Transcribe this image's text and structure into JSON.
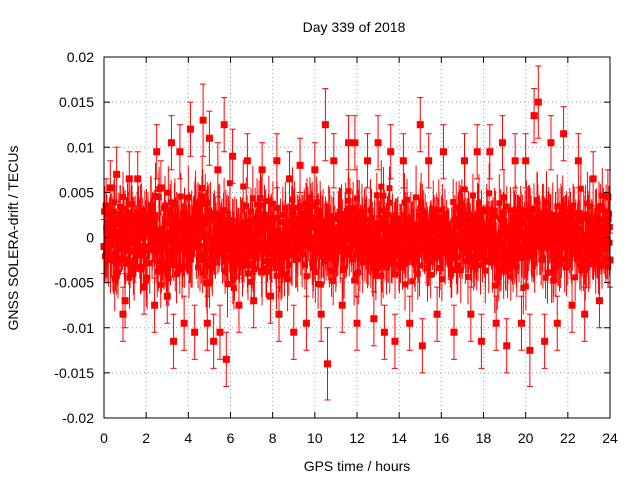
{
  "chart_data": {
    "type": "scatter",
    "title": "Day 339 of 2018",
    "xlabel": "GPS time / hours",
    "ylabel": "GNSS SOLERA-drift / TECUs",
    "xlim": [
      0,
      24
    ],
    "ylim": [
      -0.02,
      0.02
    ],
    "xticks": [
      "0",
      "2",
      "4",
      "6",
      "8",
      "10",
      "12",
      "14",
      "16",
      "18",
      "20",
      "22",
      "24"
    ],
    "yticks": [
      "0.02",
      "0.015",
      "0.01",
      "0.005",
      "0",
      "-0.005",
      "-0.01",
      "-0.015",
      "-0.02"
    ],
    "grid": true,
    "error_bars": true,
    "series": [
      {
        "color": "#ff0000",
        "marker": "square",
        "points": [
          [
            0.0,
            -0.001,
            0.003
          ],
          [
            0.1,
            0.0035,
            0.003
          ],
          [
            0.3,
            0.0055,
            0.003
          ],
          [
            0.6,
            0.007,
            0.003
          ],
          [
            0.9,
            -0.0085,
            0.003
          ],
          [
            1.0,
            -0.007,
            0.003
          ],
          [
            1.2,
            0.0065,
            0.003
          ],
          [
            1.6,
            0.0065,
            0.003
          ],
          [
            1.9,
            -0.0055,
            0.003
          ],
          [
            2.4,
            -0.0075,
            0.003
          ],
          [
            2.5,
            0.0095,
            0.003
          ],
          [
            2.7,
            0.0055,
            0.003
          ],
          [
            3.0,
            -0.0065,
            0.003
          ],
          [
            3.2,
            0.0105,
            0.003
          ],
          [
            3.3,
            -0.0115,
            0.003
          ],
          [
            3.6,
            0.0095,
            0.003
          ],
          [
            3.8,
            -0.0095,
            0.003
          ],
          [
            4.1,
            0.012,
            0.003
          ],
          [
            4.3,
            -0.0105,
            0.003
          ],
          [
            4.7,
            0.013,
            0.004
          ],
          [
            4.9,
            -0.0095,
            0.003
          ],
          [
            5.0,
            0.011,
            0.003
          ],
          [
            5.2,
            -0.0115,
            0.003
          ],
          [
            5.4,
            0.0075,
            0.003
          ],
          [
            5.5,
            -0.0105,
            0.003
          ],
          [
            5.7,
            0.0125,
            0.003
          ],
          [
            5.8,
            -0.0135,
            0.003
          ],
          [
            6.1,
            0.009,
            0.003
          ],
          [
            6.4,
            -0.0075,
            0.003
          ],
          [
            6.8,
            0.0085,
            0.003
          ],
          [
            7.1,
            -0.007,
            0.003
          ],
          [
            7.5,
            0.0075,
            0.003
          ],
          [
            7.9,
            -0.0065,
            0.003
          ],
          [
            8.2,
            0.0085,
            0.003
          ],
          [
            8.3,
            -0.0085,
            0.003
          ],
          [
            8.8,
            0.0065,
            0.003
          ],
          [
            9.0,
            -0.0105,
            0.003
          ],
          [
            9.3,
            0.008,
            0.003
          ],
          [
            9.6,
            -0.0095,
            0.003
          ],
          [
            10.0,
            0.0075,
            0.003
          ],
          [
            10.3,
            -0.0085,
            0.003
          ],
          [
            10.5,
            0.0125,
            0.004
          ],
          [
            10.6,
            -0.014,
            0.004
          ],
          [
            10.9,
            0.0085,
            0.003
          ],
          [
            11.3,
            -0.0075,
            0.003
          ],
          [
            11.6,
            0.0105,
            0.003
          ],
          [
            11.9,
            0.0105,
            0.003
          ],
          [
            12.0,
            -0.0095,
            0.003
          ],
          [
            12.5,
            0.0085,
            0.003
          ],
          [
            12.8,
            -0.009,
            0.003
          ],
          [
            13.0,
            0.0105,
            0.003
          ],
          [
            13.3,
            -0.0105,
            0.003
          ],
          [
            13.6,
            0.0095,
            0.003
          ],
          [
            13.8,
            -0.0115,
            0.003
          ],
          [
            14.2,
            0.0085,
            0.003
          ],
          [
            14.5,
            -0.0095,
            0.003
          ],
          [
            15.0,
            0.0125,
            0.003
          ],
          [
            15.1,
            -0.012,
            0.003
          ],
          [
            15.4,
            0.0085,
            0.003
          ],
          [
            15.8,
            -0.0085,
            0.003
          ],
          [
            16.1,
            0.0095,
            0.003
          ],
          [
            16.6,
            -0.0105,
            0.003
          ],
          [
            17.1,
            0.0085,
            0.003
          ],
          [
            17.4,
            -0.0085,
            0.003
          ],
          [
            17.7,
            0.0095,
            0.003
          ],
          [
            17.9,
            -0.0115,
            0.003
          ],
          [
            18.3,
            0.0095,
            0.003
          ],
          [
            18.6,
            -0.0095,
            0.003
          ],
          [
            18.9,
            0.0105,
            0.003
          ],
          [
            19.1,
            -0.012,
            0.003
          ],
          [
            19.5,
            0.0085,
            0.003
          ],
          [
            19.8,
            -0.0095,
            0.003
          ],
          [
            20.0,
            0.0085,
            0.003
          ],
          [
            20.2,
            -0.0125,
            0.004
          ],
          [
            20.4,
            0.0135,
            0.003
          ],
          [
            20.6,
            0.015,
            0.004
          ],
          [
            20.9,
            -0.0115,
            0.003
          ],
          [
            21.2,
            0.0105,
            0.003
          ],
          [
            21.5,
            -0.0095,
            0.003
          ],
          [
            21.8,
            0.0115,
            0.003
          ],
          [
            22.2,
            -0.0075,
            0.003
          ],
          [
            22.5,
            0.0085,
            0.003
          ],
          [
            22.8,
            -0.0085,
            0.003
          ],
          [
            23.2,
            0.0065,
            0.003
          ],
          [
            23.5,
            -0.007,
            0.003
          ],
          [
            23.9,
            0.0045,
            0.003
          ],
          [
            24.0,
            -0.0025,
            0.003
          ]
        ]
      }
    ]
  }
}
